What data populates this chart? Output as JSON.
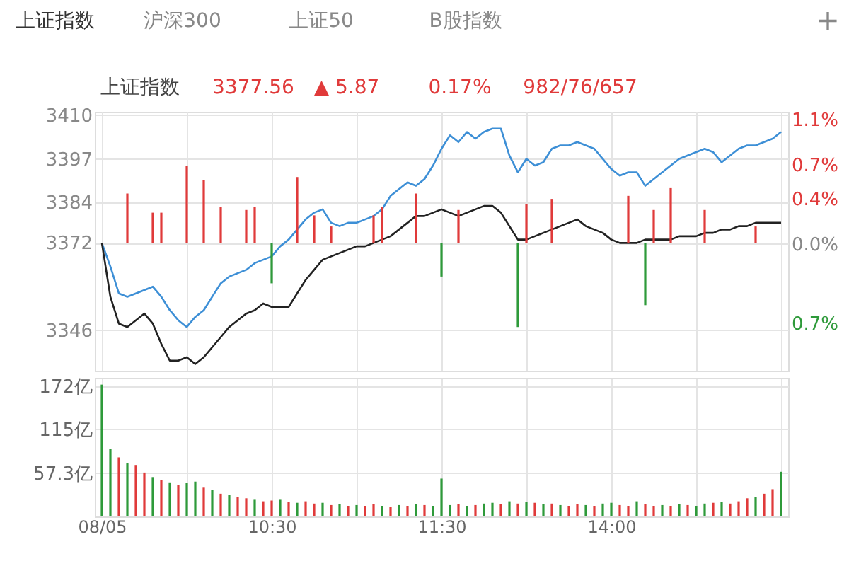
{
  "chart_data": [
    {
      "type": "line",
      "title": "上证指数",
      "annotations": [
        "上证指数",
        "沪深300",
        "上证50",
        "B股指数",
        "+",
        "3377.56",
        "▲ 5.87",
        "0.17%",
        "982/76/657"
      ],
      "categories": [
        null,
        null,
        null,
        null,
        null,
        null,
        null,
        null,
        null,
        null,
        null,
        null,
        null,
        null,
        null,
        null,
        null,
        null,
        null,
        null,
        null,
        null,
        null,
        null,
        null,
        null,
        null,
        null,
        null,
        null,
        null,
        null,
        null,
        null,
        null,
        null,
        null,
        null,
        null,
        null,
        null,
        null,
        null,
        null,
        null,
        null,
        null,
        null,
        null,
        null,
        null,
        null,
        null,
        null,
        null,
        null,
        null,
        null,
        null,
        null,
        null,
        null,
        null,
        null,
        null,
        null,
        null,
        null,
        null,
        null,
        null,
        null,
        null,
        null,
        null,
        null,
        null,
        null,
        null,
        null,
        null
      ],
      "ylim": [
        3334,
        3411
      ],
      "yticks": [
        3410,
        3397,
        3384,
        3372,
        3346
      ],
      "y2lim": [
        -1.118,
        1.166
      ],
      "y2ticks": [
        {
          "value": 1.1,
          "label": "1.1%"
        },
        {
          "value": 0.7,
          "label": "0.7%"
        },
        {
          "value": 0.4,
          "label": "0.4%"
        },
        {
          "value": 0.0,
          "label": "0.0%"
        },
        {
          "value": -0.7,
          "label": "0.7%"
        }
      ],
      "grid": true,
      "tick_labels": "y",
      "series": [
        {
          "color": "#3d8fd6",
          "type": "line",
          "values": [
            3372,
            3365,
            3357,
            3356,
            3357,
            3358,
            3359,
            3356,
            3352,
            3349,
            3347,
            3350,
            3352,
            3356,
            3360,
            3362,
            3363,
            3364,
            3366,
            3367,
            3368,
            3371,
            3373,
            3376,
            3379,
            3381,
            3382,
            3378,
            3377,
            3378,
            3378,
            3379,
            3380,
            3382,
            3386,
            3388,
            3390,
            3389,
            3391,
            3395,
            3400,
            3404,
            3402,
            3405,
            3403,
            3405,
            3406,
            3406,
            3398,
            3393,
            3397,
            3395,
            3396,
            3400,
            3401,
            3401,
            3402,
            3401,
            3400,
            3397,
            3394,
            3392,
            3393,
            3393,
            3389,
            3391,
            3393,
            3395,
            3397,
            3398,
            3399,
            3400,
            3399,
            3396,
            3398,
            3400,
            3401,
            3401,
            3402,
            3403,
            3405
          ]
        },
        {
          "color": "#222222",
          "type": "line",
          "values": [
            3372,
            3356,
            3348,
            3347,
            3349,
            3351,
            3348,
            3342,
            3337,
            3337,
            3338,
            3336,
            3338,
            3341,
            3344,
            3347,
            3349,
            3351,
            3352,
            3354,
            3353,
            3353,
            3353,
            3357,
            3361,
            3364,
            3367,
            3368,
            3369,
            3370,
            3371,
            3371,
            3372,
            3373,
            3374,
            3376,
            3378,
            3380,
            3380,
            3381,
            3382,
            3381,
            3380,
            3381,
            3382,
            3383,
            3383,
            3381,
            3377,
            3373,
            3373,
            3374,
            3375,
            3376,
            3377,
            3378,
            3379,
            3377,
            3376,
            3375,
            3373,
            3372,
            3372,
            3372,
            3373,
            3373,
            3373,
            3373,
            3374,
            3374,
            3374,
            3375,
            3375,
            3376,
            3376,
            3377,
            3377,
            3378,
            3378,
            3378,
            3378
          ]
        },
        {
          "type": "bar",
          "values": [
            null,
            null,
            null,
            14.7,
            null,
            null,
            9,
            9,
            null,
            null,
            22.9,
            null,
            18.8,
            null,
            10.6,
            null,
            null,
            9.8,
            10.6,
            null,
            -12,
            null,
            null,
            19.6,
            null,
            8.2,
            null,
            4.9,
            null,
            null,
            null,
            null,
            8.2,
            10.6,
            null,
            null,
            null,
            14.7,
            null,
            null,
            -10,
            null,
            9.8,
            null,
            null,
            null,
            null,
            null,
            null,
            -25,
            11.5,
            null,
            null,
            13.1,
            null,
            null,
            null,
            null,
            null,
            null,
            null,
            null,
            14,
            null,
            -18.5,
            9.8,
            null,
            16.3,
            null,
            null,
            null,
            9.8,
            null,
            null,
            null,
            null,
            null,
            4.9,
            null,
            null,
            null
          ],
          "base": [
            null,
            null,
            null,
            3372,
            null,
            null,
            3372,
            3372,
            null,
            null,
            3372,
            null,
            3372,
            null,
            3372,
            null,
            null,
            3372,
            3372,
            null,
            3372,
            null,
            null,
            3372,
            null,
            3372,
            null,
            3372,
            null,
            null,
            null,
            null,
            3372,
            3372,
            null,
            null,
            null,
            3372,
            null,
            null,
            3372,
            null,
            3372,
            null,
            null,
            null,
            null,
            null,
            null,
            3372,
            3372,
            null,
            null,
            3372,
            null,
            null,
            null,
            null,
            null,
            null,
            null,
            null,
            3372,
            null,
            3372,
            3372,
            null,
            3372,
            null,
            null,
            null,
            3372,
            null,
            null,
            null,
            null,
            null,
            3372,
            null,
            null,
            null
          ],
          "colors": [
            null,
            null,
            null,
            "#e03a3a",
            null,
            null,
            "#e03a3a",
            "#e03a3a",
            null,
            null,
            "#e03a3a",
            null,
            "#e03a3a",
            null,
            "#e03a3a",
            null,
            null,
            "#e03a3a",
            "#e03a3a",
            null,
            "#2e9a3a",
            null,
            null,
            "#e03a3a",
            null,
            "#e03a3a",
            null,
            "#e03a3a",
            null,
            null,
            null,
            null,
            "#e03a3a",
            "#e03a3a",
            null,
            null,
            null,
            "#e03a3a",
            null,
            null,
            "#2e9a3a",
            null,
            "#e03a3a",
            null,
            null,
            null,
            null,
            null,
            null,
            "#2e9a3a",
            "#e03a3a",
            null,
            null,
            "#e03a3a",
            null,
            null,
            null,
            null,
            null,
            null,
            null,
            null,
            "#e03a3a",
            null,
            "#2e9a3a",
            "#e03a3a",
            null,
            "#e03a3a",
            null,
            null,
            null,
            "#e03a3a",
            null,
            null,
            null,
            null,
            null,
            "#e03a3a",
            null,
            null,
            null
          ]
        }
      ]
    },
    {
      "type": "bar",
      "categories": [
        "08/05",
        null,
        null,
        null,
        null,
        null,
        null,
        null,
        null,
        null,
        null,
        null,
        null,
        null,
        null,
        null,
        null,
        null,
        null,
        null,
        "10:30",
        null,
        null,
        null,
        null,
        null,
        null,
        null,
        null,
        null,
        null,
        null,
        null,
        null,
        null,
        null,
        null,
        null,
        null,
        null,
        "11:30",
        null,
        null,
        null,
        null,
        null,
        null,
        null,
        null,
        null,
        null,
        null,
        null,
        null,
        null,
        null,
        null,
        null,
        null,
        null,
        "14:00",
        null,
        null,
        null,
        null,
        null,
        null,
        null,
        null,
        null,
        null,
        null,
        null,
        null,
        null,
        null,
        null,
        null,
        null,
        null,
        null
      ],
      "values": [
        174,
        89,
        78,
        70,
        68,
        58,
        52,
        48,
        45,
        42,
        44,
        46,
        38,
        35,
        30,
        28,
        26,
        24,
        22,
        20,
        21,
        22,
        19,
        18,
        20,
        17,
        18,
        15,
        16,
        14,
        15,
        14,
        16,
        14,
        13,
        15,
        14,
        16,
        15,
        14,
        50,
        15,
        16,
        14,
        15,
        17,
        18,
        16,
        20,
        17,
        19,
        18,
        16,
        17,
        15,
        14,
        16,
        15,
        14,
        17,
        18,
        15,
        14,
        20,
        16,
        14,
        15,
        14,
        16,
        15,
        14,
        17,
        18,
        19,
        17,
        20,
        24,
        26,
        30,
        36,
        59
      ],
      "colors": [
        "#2e9a3a",
        "#2e9a3a",
        "#e03a3a",
        "#2e9a3a",
        "#e03a3a",
        "#e03a3a",
        "#2e9a3a",
        "#e03a3a",
        "#2e9a3a",
        "#e03a3a",
        "#2e9a3a",
        "#2e9a3a",
        "#e03a3a",
        "#2e9a3a",
        "#e03a3a",
        "#2e9a3a",
        "#e03a3a",
        "#e03a3a",
        "#2e9a3a",
        "#e03a3a",
        "#e03a3a",
        "#2e9a3a",
        "#e03a3a",
        "#2e9a3a",
        "#e03a3a",
        "#e03a3a",
        "#2e9a3a",
        "#e03a3a",
        "#2e9a3a",
        "#e03a3a",
        "#2e9a3a",
        "#e03a3a",
        "#e03a3a",
        "#2e9a3a",
        "#e03a3a",
        "#2e9a3a",
        "#e03a3a",
        "#2e9a3a",
        "#e03a3a",
        "#2e9a3a",
        "#2e9a3a",
        "#2e9a3a",
        "#e03a3a",
        "#2e9a3a",
        "#e03a3a",
        "#2e9a3a",
        "#2e9a3a",
        "#e03a3a",
        "#2e9a3a",
        "#e03a3a",
        "#2e9a3a",
        "#e03a3a",
        "#2e9a3a",
        "#e03a3a",
        "#2e9a3a",
        "#e03a3a",
        "#e03a3a",
        "#2e9a3a",
        "#e03a3a",
        "#2e9a3a",
        "#2e9a3a",
        "#e03a3a",
        "#e03a3a",
        "#2e9a3a",
        "#e03a3a",
        "#e03a3a",
        "#2e9a3a",
        "#e03a3a",
        "#2e9a3a",
        "#e03a3a",
        "#2e9a3a",
        "#2e9a3a",
        "#e03a3a",
        "#2e9a3a",
        "#e03a3a",
        "#e03a3a",
        "#e03a3a",
        "#2e9a3a",
        "#e03a3a",
        "#e03a3a",
        "#2e9a3a"
      ],
      "ylim": [
        0,
        183
      ],
      "yticks": [
        {
          "value": 57.3,
          "label": "57.3亿"
        },
        {
          "value": 115,
          "label": "115亿"
        },
        {
          "value": 172,
          "label": "172亿"
        }
      ],
      "grid": true
    }
  ]
}
